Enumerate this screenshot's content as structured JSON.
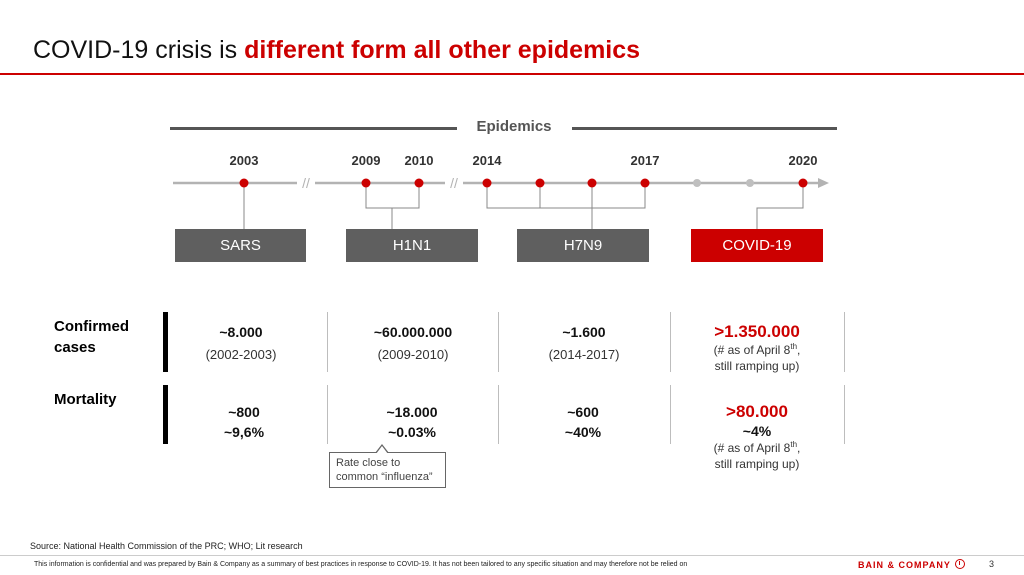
{
  "slide": {
    "title_plain": "COVID-19 crisis is",
    "title_accent": "different form all other epidemics"
  },
  "timeline": {
    "header": "Epidemics",
    "years": [
      {
        "label": "2003"
      },
      {
        "label": "2009"
      },
      {
        "label": "2010"
      },
      {
        "label": "2014"
      },
      {
        "label": "2017"
      },
      {
        "label": "2020"
      }
    ],
    "break_marks": [
      "//",
      "//"
    ],
    "epidemics": [
      {
        "name": "SARS",
        "highlight": false
      },
      {
        "name": "H1N1",
        "highlight": false
      },
      {
        "name": "H7N9",
        "highlight": false
      },
      {
        "name": "COVID-19",
        "highlight": true
      }
    ],
    "colors": {
      "accent": "#cc0000",
      "axis": "#b3b3b3",
      "future_dot": "#bfbfbf",
      "box": "#5f5f5f"
    }
  },
  "table": {
    "rows": [
      {
        "label_line1": "Confirmed",
        "label_line2": "cases",
        "cells": [
          {
            "main": "~8.000",
            "sub": "(2002-2003)"
          },
          {
            "main": "~60.000.000",
            "sub": "(2009-2010)"
          },
          {
            "main": "~1.600",
            "sub": "(2014-2017)"
          },
          {
            "main": ">1.350.000",
            "note_line1_pre": "(# as of April 8",
            "note_sup": "th",
            "note_line1_post": ",",
            "note_line2": "still ramping up)"
          }
        ]
      },
      {
        "label_line1": "Mortality",
        "cells": [
          {
            "line1": "~800",
            "line2": "~9,6%"
          },
          {
            "line1": "~18.000",
            "line2": "~0.03%"
          },
          {
            "line1": "~600",
            "line2": "~40%"
          },
          {
            "line1": ">80.000",
            "line2": "~4%",
            "note_line1_pre": "(# as of April 8",
            "note_sup": "th",
            "note_line1_post": ",",
            "note_line2": "still ramping up)"
          }
        ]
      }
    ],
    "callout_line1": "Rate close to",
    "callout_line2": "common “influenza”"
  },
  "footer": {
    "source": "Source: National Health Commission of the PRC; WHO; Lit research",
    "disclaimer": "This information is confidential and was prepared by Bain & Company as a summary of best practices in response to COVID-19. It has not been tailored to any specific situation and may therefore not be relied on",
    "brand": "BAIN & COMPANY",
    "page_number": "3"
  }
}
